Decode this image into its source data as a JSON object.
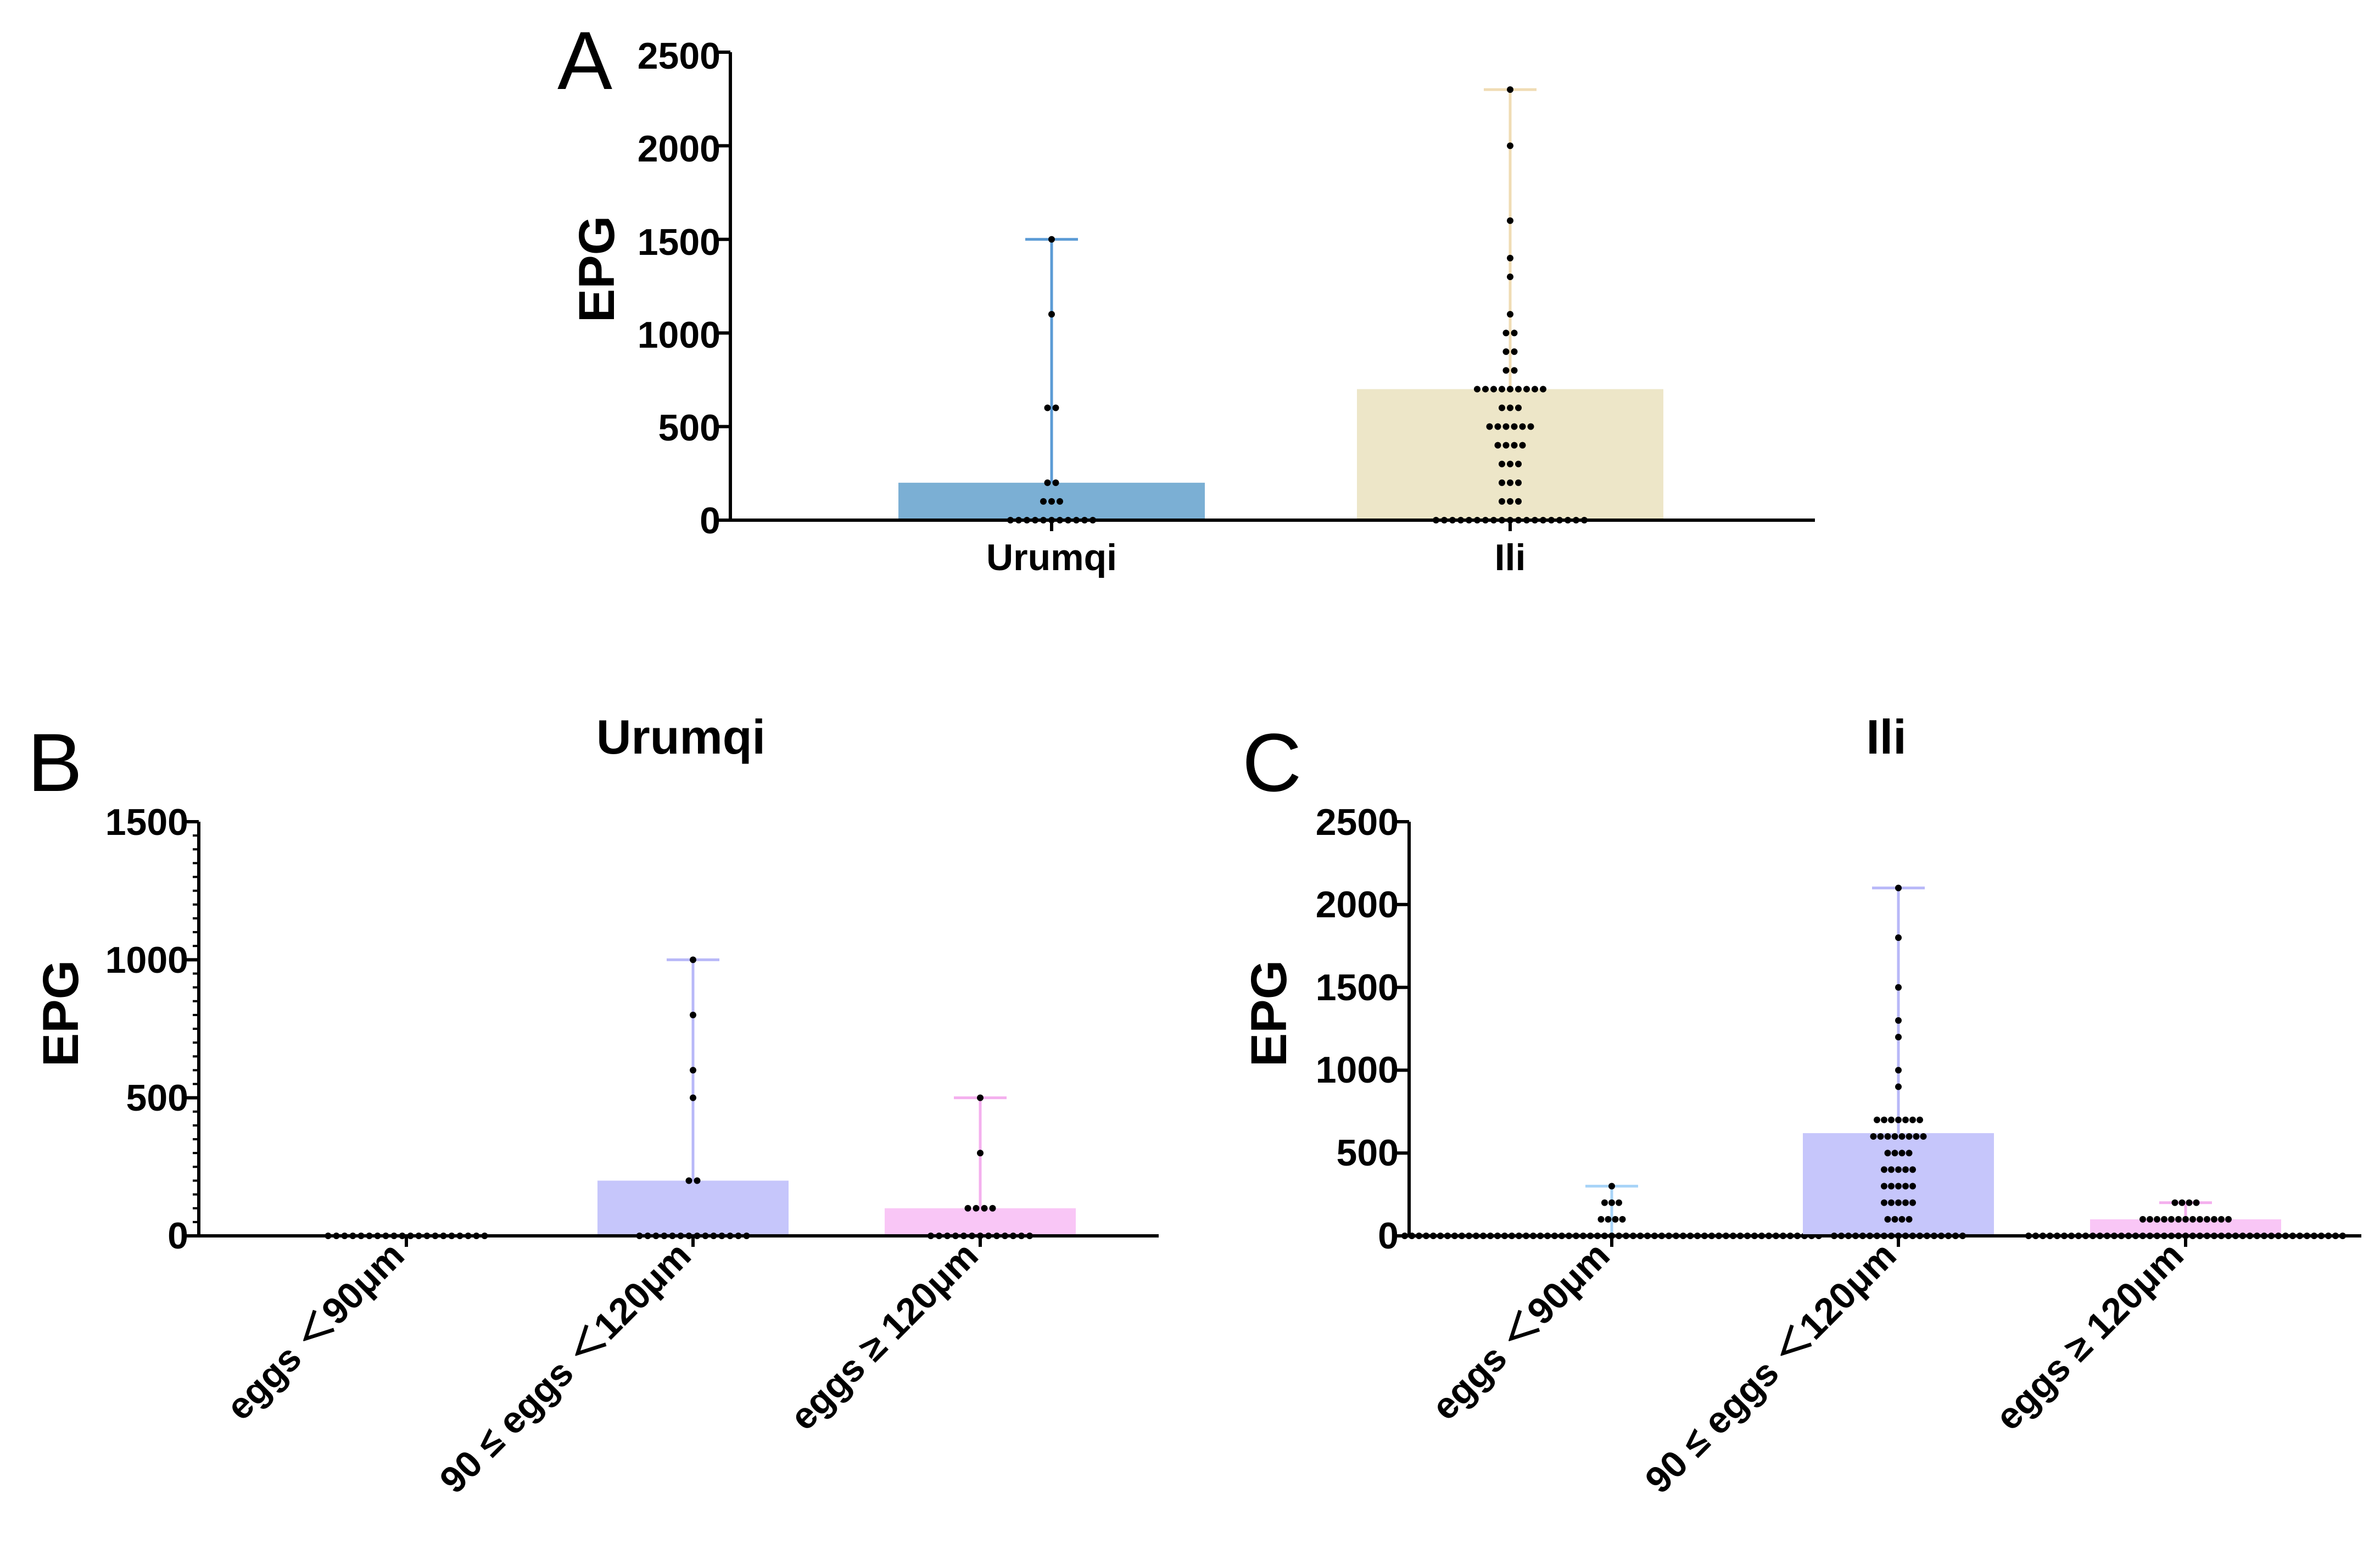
{
  "colors": {
    "axis": "#000000",
    "point": "#000000"
  },
  "panels": [
    {
      "letter": "A",
      "title": "",
      "ylabel": "EPG",
      "yticks": [
        "0",
        "500",
        "1000",
        "1500",
        "2000",
        "2500"
      ],
      "categories": [
        {
          "label": "Urumqi",
          "bar_color": "#7bafd4",
          "whisker_color": "#5b9bd5"
        },
        {
          "label": "Ili",
          "bar_color": "#ede6c8",
          "whisker_color": "#f0dcb4"
        }
      ]
    },
    {
      "letter": "B",
      "title": "Urumqi",
      "ylabel": "EPG",
      "yticks": [
        "0",
        "500",
        "1000",
        "1500"
      ],
      "categories": [
        {
          "label": "eggs ＜90μm",
          "bar_color": "#c8c8ff",
          "whisker_color": "#b8b8f8"
        },
        {
          "label": "90 ≤ eggs ＜120μm",
          "bar_color": "#c6c6fb",
          "whisker_color": "#b8b8f8"
        },
        {
          "label": "eggs ≥ 120μm",
          "bar_color": "#f9c6f6",
          "whisker_color": "#f4b0ee"
        }
      ]
    },
    {
      "letter": "C",
      "title": "Ili",
      "ylabel": "EPG",
      "yticks": [
        "0",
        "500",
        "1000",
        "1500",
        "2000",
        "2500"
      ],
      "categories": [
        {
          "label": "eggs ＜90μm",
          "bar_color": "#c8e4ff",
          "whisker_color": "#a8d4f8"
        },
        {
          "label": "90 ≤ eggs ＜120μm",
          "bar_color": "#c6c6fb",
          "whisker_color": "#b8b8f8"
        },
        {
          "label": "eggs ≥ 120μm",
          "bar_color": "#f9c6f6",
          "whisker_color": "#f4b0ee"
        }
      ]
    }
  ],
  "chart_data": [
    {
      "type": "bar",
      "panel": "A",
      "title": "",
      "xlabel": "",
      "ylabel": "EPG",
      "ylim": [
        0,
        2500
      ],
      "categories": [
        "Urumqi",
        "Ili"
      ],
      "values": [
        200,
        700
      ],
      "error_max": [
        1500,
        2300
      ],
      "points": [
        [
          0,
          0,
          0,
          0,
          0,
          0,
          0,
          0,
          0,
          0,
          0,
          100,
          100,
          100,
          200,
          200,
          600,
          600,
          1100,
          1500
        ],
        [
          0,
          0,
          0,
          0,
          0,
          0,
          0,
          0,
          0,
          0,
          0,
          0,
          0,
          0,
          0,
          0,
          0,
          0,
          0,
          100,
          100,
          100,
          200,
          200,
          200,
          300,
          300,
          300,
          400,
          400,
          400,
          400,
          500,
          500,
          500,
          500,
          500,
          500,
          600,
          600,
          600,
          700,
          700,
          700,
          700,
          700,
          700,
          700,
          700,
          700,
          800,
          800,
          900,
          900,
          1000,
          1000,
          1100,
          1300,
          1400,
          1600,
          2000,
          2300
        ]
      ]
    },
    {
      "type": "bar",
      "panel": "B",
      "title": "Urumqi",
      "xlabel": "",
      "ylabel": "EPG",
      "ylim": [
        0,
        1500
      ],
      "categories": [
        "eggs ＜90μm",
        "90 ≤ eggs ＜120μm",
        "eggs ≥ 120μm"
      ],
      "values": [
        0,
        200,
        100
      ],
      "error_max": [
        0,
        1000,
        500
      ],
      "points": [
        [
          0,
          0,
          0,
          0,
          0,
          0,
          0,
          0,
          0,
          0,
          0,
          0,
          0,
          0,
          0,
          0,
          0,
          0,
          0,
          0
        ],
        [
          0,
          0,
          0,
          0,
          0,
          0,
          0,
          0,
          0,
          0,
          0,
          0,
          0,
          0,
          200,
          200,
          500,
          600,
          800,
          1000
        ],
        [
          0,
          0,
          0,
          0,
          0,
          0,
          0,
          0,
          0,
          0,
          0,
          0,
          0,
          100,
          100,
          100,
          100,
          300,
          500
        ]
      ]
    },
    {
      "type": "bar",
      "panel": "C",
      "title": "Ili",
      "xlabel": "",
      "ylabel": "EPG",
      "ylim": [
        0,
        2500
      ],
      "categories": [
        "eggs ＜90μm",
        "90 ≤ eggs ＜120μm",
        "eggs ≥ 120μm"
      ],
      "values": [
        0,
        620,
        100
      ],
      "error_max": [
        300,
        2100,
        200
      ],
      "points": [
        [
          0,
          0,
          0,
          0,
          0,
          0,
          0,
          0,
          0,
          0,
          0,
          0,
          0,
          0,
          0,
          0,
          0,
          0,
          0,
          0,
          0,
          0,
          0,
          0,
          0,
          0,
          0,
          0,
          0,
          0,
          0,
          0,
          0,
          0,
          0,
          0,
          0,
          0,
          0,
          0,
          0,
          0,
          0,
          0,
          0,
          0,
          0,
          0,
          0,
          0,
          0,
          0,
          0,
          0,
          0,
          0,
          0,
          0,
          0,
          100,
          100,
          100,
          100,
          200,
          200,
          200,
          300
        ],
        [
          0,
          0,
          0,
          0,
          0,
          0,
          0,
          0,
          0,
          0,
          0,
          0,
          0,
          0,
          0,
          0,
          0,
          0,
          0,
          100,
          100,
          100,
          100,
          200,
          200,
          200,
          200,
          200,
          300,
          300,
          300,
          300,
          300,
          400,
          400,
          400,
          400,
          400,
          500,
          500,
          500,
          500,
          600,
          600,
          600,
          600,
          600,
          600,
          600,
          600,
          700,
          700,
          700,
          700,
          700,
          700,
          700,
          900,
          1000,
          1200,
          1300,
          1500,
          1800,
          2100
        ],
        [
          0,
          0,
          0,
          0,
          0,
          0,
          0,
          0,
          0,
          0,
          0,
          0,
          0,
          0,
          0,
          0,
          0,
          0,
          0,
          0,
          0,
          0,
          0,
          0,
          0,
          0,
          0,
          0,
          0,
          0,
          0,
          0,
          0,
          0,
          0,
          0,
          0,
          0,
          0,
          0,
          0,
          0,
          0,
          0,
          0,
          100,
          100,
          100,
          100,
          100,
          100,
          100,
          100,
          100,
          100,
          100,
          100,
          100,
          200,
          200,
          200,
          200
        ]
      ]
    }
  ]
}
